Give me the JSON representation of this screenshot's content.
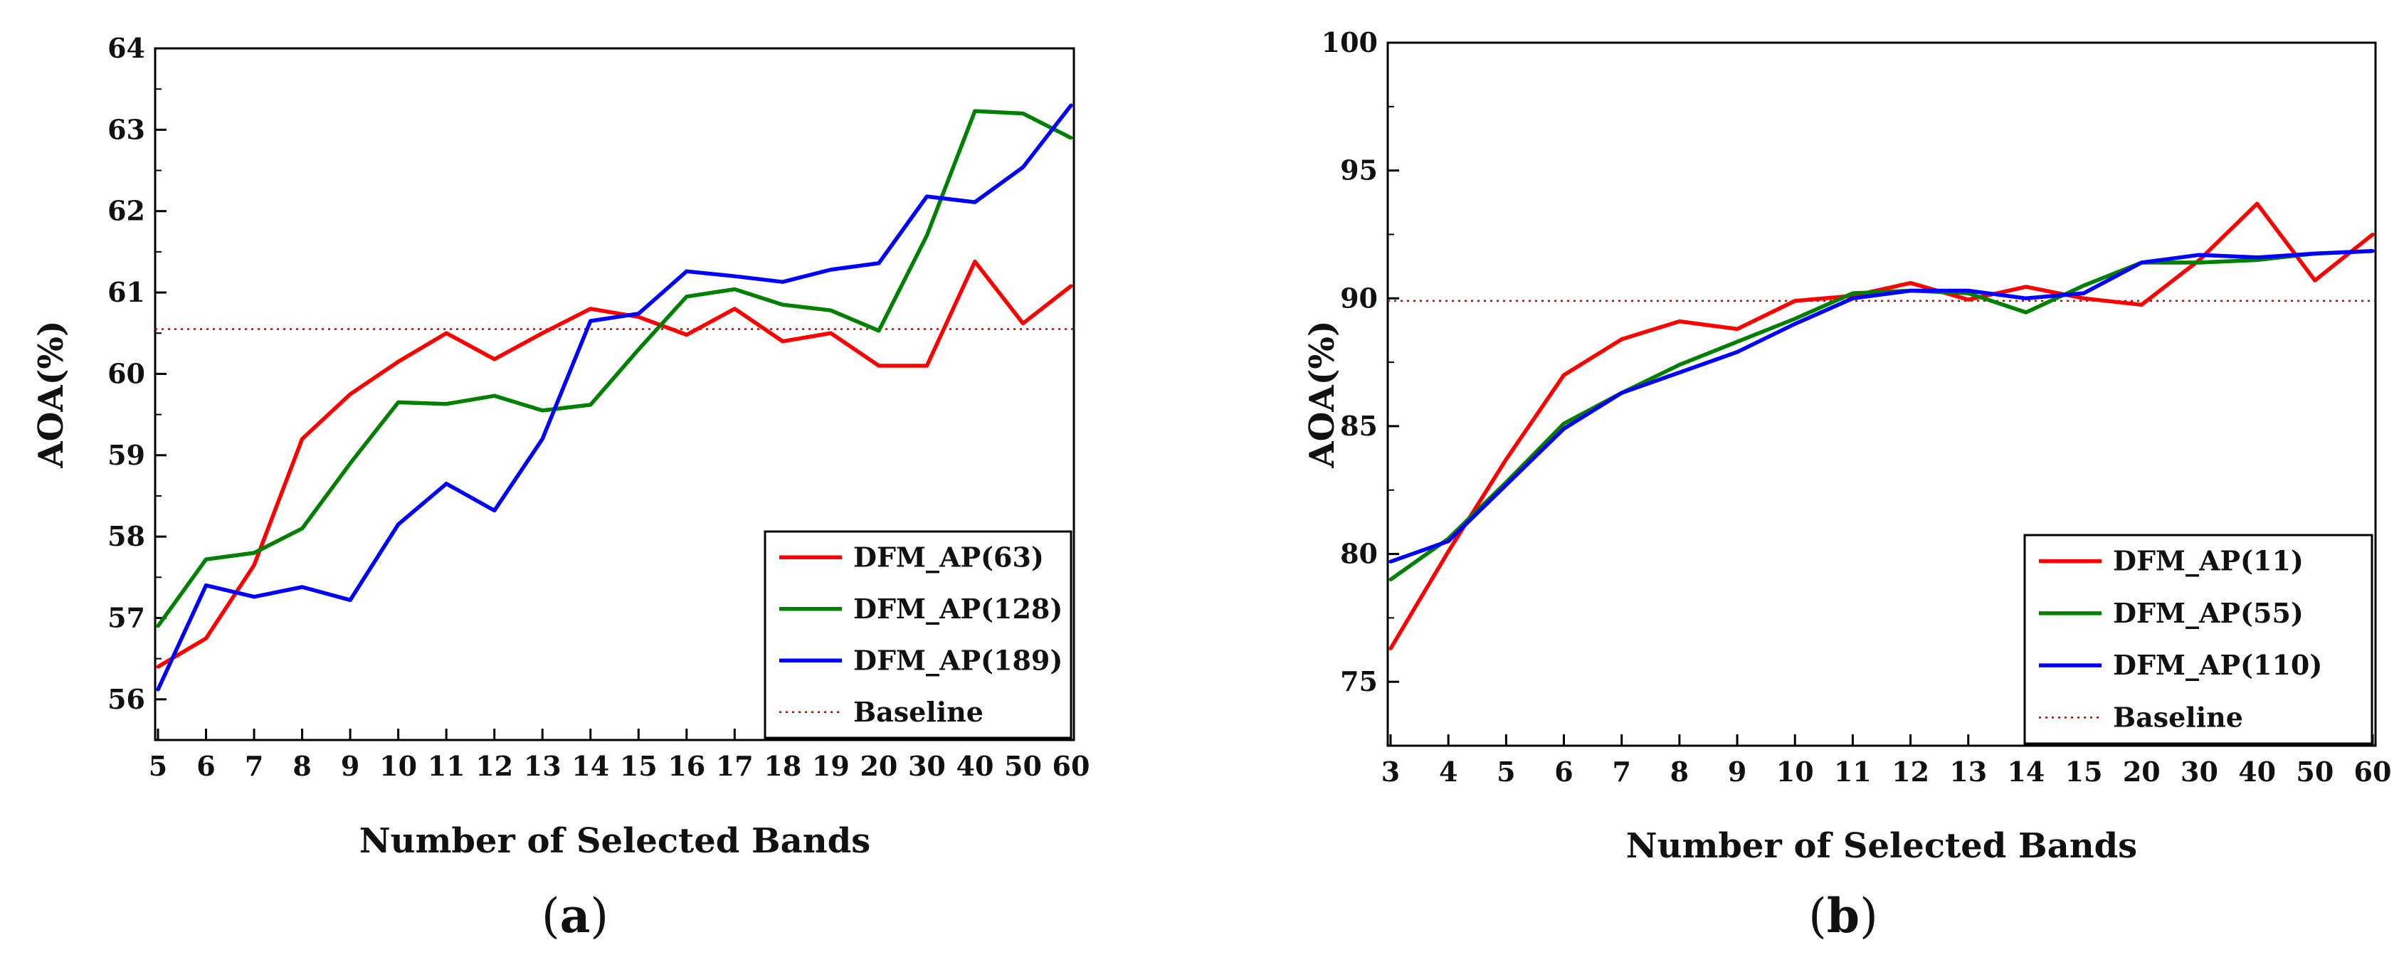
{
  "chart_data": [
    {
      "panel": "(a)",
      "panel_letter": "a",
      "type": "line",
      "title": "",
      "xlabel": "Number of Selected Bands",
      "ylabel": "AOA(%)",
      "categories": [
        "5",
        "6",
        "7",
        "8",
        "9",
        "10",
        "11",
        "12",
        "13",
        "14",
        "15",
        "16",
        "17",
        "18",
        "19",
        "20",
        "30",
        "40",
        "50",
        "60"
      ],
      "ylim": [
        55.5,
        64
      ],
      "yticks": [
        56,
        57,
        58,
        59,
        60,
        61,
        62,
        63,
        64
      ],
      "grid": false,
      "legend_position": "bottom-right",
      "series": [
        {
          "name": "DFM_AP(63)",
          "color": "#ff0000",
          "values": [
            56.4,
            56.75,
            57.65,
            59.2,
            59.75,
            60.15,
            60.5,
            60.18,
            60.5,
            60.8,
            60.7,
            60.48,
            60.8,
            60.4,
            60.5,
            60.1,
            60.1,
            61.38,
            60.62,
            61.08
          ]
        },
        {
          "name": "DFM_AP(128)",
          "color": "#008000",
          "values": [
            56.9,
            57.72,
            57.8,
            58.1,
            58.9,
            59.65,
            59.63,
            59.73,
            59.55,
            59.62,
            60.3,
            60.95,
            61.04,
            60.85,
            60.78,
            60.53,
            61.7,
            63.23,
            63.2,
            62.9
          ]
        },
        {
          "name": "DFM_AP(189)",
          "color": "#0000ff",
          "values": [
            56.12,
            57.4,
            57.26,
            57.38,
            57.22,
            58.15,
            58.65,
            58.32,
            59.2,
            60.65,
            60.74,
            61.26,
            61.2,
            61.13,
            61.28,
            61.36,
            62.18,
            62.11,
            62.54,
            63.3
          ]
        }
      ],
      "baseline": {
        "name": "Baseline",
        "color": "#c00000",
        "value": 60.55
      }
    },
    {
      "panel": "(b)",
      "panel_letter": "b",
      "type": "line",
      "title": "",
      "xlabel": "Number of Selected Bands",
      "ylabel": "AOA(%)",
      "categories": [
        "3",
        "4",
        "5",
        "6",
        "7",
        "8",
        "9",
        "10",
        "11",
        "12",
        "13",
        "14",
        "15",
        "20",
        "30",
        "40",
        "50",
        "60"
      ],
      "ylim": [
        72.5,
        100
      ],
      "yticks": [
        75,
        80,
        85,
        90,
        95,
        100
      ],
      "grid": false,
      "legend_position": "bottom-right",
      "series": [
        {
          "name": "DFM_AP(11)",
          "color": "#ff0000",
          "values": [
            76.3,
            80.1,
            83.7,
            87.0,
            88.4,
            89.1,
            88.8,
            89.9,
            90.1,
            90.6,
            89.95,
            90.45,
            90.0,
            89.75,
            91.5,
            93.7,
            90.7,
            92.5
          ]
        },
        {
          "name": "DFM_AP(55)",
          "color": "#008000",
          "values": [
            79.0,
            80.6,
            82.8,
            85.1,
            86.3,
            87.4,
            88.3,
            89.2,
            90.2,
            90.3,
            90.2,
            89.45,
            90.5,
            91.4,
            91.4,
            91.5,
            91.75,
            91.85
          ]
        },
        {
          "name": "DFM_AP(110)",
          "color": "#0000ff",
          "values": [
            79.7,
            80.5,
            82.7,
            84.9,
            86.3,
            87.1,
            87.9,
            89.0,
            90.0,
            90.3,
            90.3,
            90.0,
            90.2,
            91.4,
            91.7,
            91.6,
            91.75,
            91.85
          ]
        }
      ],
      "baseline": {
        "name": "Baseline",
        "color": "#c00000",
        "value": 89.9
      }
    }
  ]
}
